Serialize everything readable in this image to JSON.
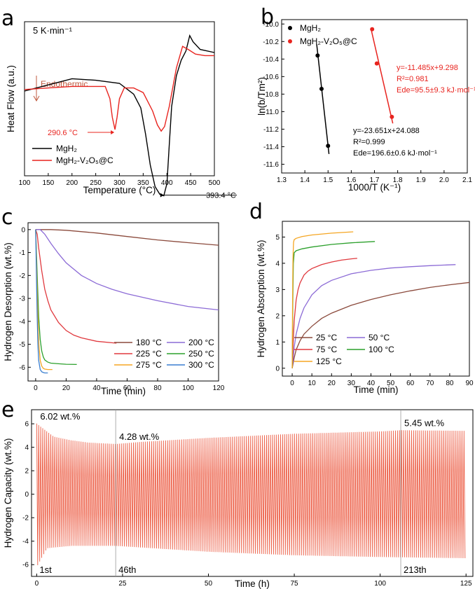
{
  "chart_data": [
    {
      "panel": "a",
      "type": "line",
      "annotation_top": "5 K·min⁻¹",
      "xlabel": "Temperature (°C)",
      "ylabel": "Heat Flow (a.u.)",
      "xlim": [
        100,
        500
      ],
      "xticks": [
        "100",
        "150",
        "200",
        "250",
        "300",
        "350",
        "400",
        "450",
        "500"
      ],
      "endothermic_label": "Endothermic",
      "peak_labels": [
        {
          "text": "290.6 °C",
          "series": "MgH₂-V₂O₅@C",
          "x": 290.6
        },
        {
          "text": "393.4 °C",
          "series": "MgH₂",
          "x": 393.4
        }
      ],
      "series": [
        {
          "name": "MgH₂",
          "color": "#000000",
          "x": [
            100,
            150,
            200,
            250,
            300,
            330,
            345,
            355,
            365,
            375,
            385,
            393.4,
            400,
            405,
            410,
            420,
            430,
            440,
            448,
            455,
            470,
            500
          ],
          "y": [
            0.45,
            0.41,
            0.37,
            0.38,
            0.4,
            0.47,
            0.56,
            0.73,
            0.93,
            1.07,
            1.12,
            1.13,
            1.05,
            0.8,
            0.55,
            0.35,
            0.25,
            0.19,
            0.09,
            0.13,
            0.18,
            0.2
          ]
        },
        {
          "name": "MgH₂-V₂O₅@C",
          "color": "#e8241f",
          "x": [
            100,
            150,
            200,
            250,
            270,
            280,
            285,
            290.6,
            295,
            300,
            310,
            330,
            350,
            370,
            380,
            388,
            395,
            405,
            420,
            433,
            445,
            460,
            480,
            500
          ],
          "y": [
            0.44,
            0.43,
            0.42,
            0.42,
            0.42,
            0.5,
            0.62,
            0.7,
            0.62,
            0.5,
            0.43,
            0.43,
            0.46,
            0.58,
            0.67,
            0.71,
            0.68,
            0.55,
            0.3,
            0.16,
            0.18,
            0.21,
            0.22,
            0.22
          ]
        }
      ]
    },
    {
      "panel": "b",
      "type": "scatter",
      "xlabel": "1000/T (K⁻¹)",
      "ylabel": "ln(b/Tm²)",
      "xlim": [
        1.3,
        2.1
      ],
      "ylim": [
        -11.7,
        -9.95
      ],
      "xticks": [
        "1.3",
        "1.4",
        "1.5",
        "1.6",
        "1.7",
        "1.8",
        "1.9",
        "2.0",
        "2.1"
      ],
      "yticks": [
        "-10.0",
        "-10.2",
        "-10.4",
        "-10.6",
        "-10.8",
        "-11.0",
        "-11.2",
        "-11.4",
        "-11.6"
      ],
      "series": [
        {
          "name": "MgH₂",
          "color": "#000000",
          "x": [
            1.455,
            1.472,
            1.5
          ],
          "y": [
            -10.36,
            -10.74,
            -11.39
          ],
          "fit": {
            "slope": -23.651,
            "intercept": 24.088
          },
          "fit_text": [
            "y=-23.651x+24.088",
            "R²=0.999",
            "Ede=196.6±0.6 kJ·mol⁻¹"
          ]
        },
        {
          "name": "MgH₂-V₂O₅@C",
          "color": "#e8241f",
          "x": [
            1.69,
            1.71,
            1.775
          ],
          "y": [
            -10.06,
            -10.45,
            -11.06
          ],
          "fit": {
            "slope": -11.485,
            "intercept": 9.298
          },
          "fit_text": [
            "y=-11.485x+9.298",
            "R²=0.981",
            "Ede=95.5±9.3 kJ·mol⁻¹"
          ]
        }
      ]
    },
    {
      "panel": "c",
      "type": "line",
      "xlabel": "Time (min)",
      "ylabel": "Hydrogen Desorption (wt.%)",
      "xlim": [
        -5,
        120
      ],
      "ylim": [
        -6.6,
        0.3
      ],
      "xticks": [
        "0",
        "20",
        "40",
        "60",
        "80",
        "100",
        "120"
      ],
      "yticks": [
        "0",
        "-1",
        "-2",
        "-3",
        "-4",
        "-5",
        "-6"
      ],
      "series": [
        {
          "name": "180 °C",
          "color": "#8b4a3c",
          "x": [
            0,
            10,
            20,
            40,
            60,
            80,
            100,
            120
          ],
          "y": [
            0,
            0,
            -0.03,
            -0.15,
            -0.3,
            -0.45,
            -0.57,
            -0.68
          ]
        },
        {
          "name": "200 °C",
          "color": "#8c6bd6",
          "x": [
            0,
            3,
            6,
            10,
            15,
            20,
            30,
            40,
            50,
            60,
            80,
            100,
            120
          ],
          "y": [
            0,
            0,
            -0.2,
            -0.6,
            -1.05,
            -1.45,
            -2.0,
            -2.35,
            -2.6,
            -2.8,
            -3.1,
            -3.35,
            -3.5
          ]
        },
        {
          "name": "225 °C",
          "color": "#e0393e",
          "x": [
            0,
            1,
            2,
            4,
            6,
            8,
            10,
            15,
            20,
            25,
            30,
            40,
            53
          ],
          "y": [
            0,
            -0.2,
            -0.8,
            -1.8,
            -2.6,
            -3.1,
            -3.5,
            -4.05,
            -4.4,
            -4.6,
            -4.72,
            -4.87,
            -4.95
          ]
        },
        {
          "name": "250 °C",
          "color": "#2ca02c",
          "x": [
            0,
            1,
            2,
            3,
            4,
            5,
            6,
            8,
            10,
            15,
            20,
            27
          ],
          "y": [
            0,
            -2.0,
            -3.8,
            -4.8,
            -5.3,
            -5.55,
            -5.68,
            -5.78,
            -5.82,
            -5.85,
            -5.87,
            -5.88
          ]
        },
        {
          "name": "275 °C",
          "color": "#f5a623",
          "x": [
            0,
            1,
            2,
            3,
            4,
            5,
            6,
            8,
            11
          ],
          "y": [
            0,
            -2.8,
            -4.9,
            -5.7,
            -5.95,
            -6.05,
            -6.08,
            -6.1,
            -6.1
          ]
        },
        {
          "name": "300 °C",
          "color": "#3a7fd0",
          "x": [
            0,
            0.5,
            1,
            1.5,
            2,
            3,
            4,
            5,
            6,
            8
          ],
          "y": [
            0,
            -2.0,
            -3.8,
            -5.0,
            -5.7,
            -6.1,
            -6.2,
            -6.23,
            -6.25,
            -6.25
          ]
        }
      ]
    },
    {
      "panel": "d",
      "type": "line",
      "xlabel": "Time (min)",
      "ylabel": "Hydrogen Absorption (wt.%)",
      "xlim": [
        -5,
        90
      ],
      "ylim": [
        -0.3,
        5.6
      ],
      "xticks": [
        "0",
        "10",
        "20",
        "30",
        "40",
        "50",
        "60",
        "70",
        "80",
        "90"
      ],
      "yticks": [
        "0",
        "1",
        "2",
        "3",
        "4",
        "5"
      ],
      "series": [
        {
          "name": "25 °C",
          "color": "#8b4a3c",
          "x": [
            0,
            1,
            2,
            4,
            6,
            10,
            15,
            20,
            30,
            40,
            50,
            60,
            70,
            80,
            90
          ],
          "y": [
            0,
            0.4,
            0.7,
            1.05,
            1.3,
            1.6,
            1.9,
            2.1,
            2.4,
            2.62,
            2.8,
            2.95,
            3.08,
            3.18,
            3.27
          ]
        },
        {
          "name": "50 °C",
          "color": "#8c6bd6",
          "x": [
            0,
            1,
            2,
            4,
            6,
            10,
            15,
            20,
            30,
            40,
            50,
            60,
            70,
            83
          ],
          "y": [
            0,
            0.8,
            1.3,
            1.9,
            2.3,
            2.8,
            3.15,
            3.35,
            3.6,
            3.73,
            3.82,
            3.87,
            3.91,
            3.95
          ]
        },
        {
          "name": "75 °C",
          "color": "#e0393e",
          "x": [
            0,
            0.5,
            1,
            2,
            3,
            4,
            6,
            8,
            10,
            15,
            20,
            25,
            30,
            33
          ],
          "y": [
            0,
            1.0,
            1.8,
            2.6,
            3.0,
            3.25,
            3.55,
            3.7,
            3.8,
            3.95,
            4.05,
            4.12,
            4.17,
            4.19
          ]
        },
        {
          "name": "100 °C",
          "color": "#2ca02c",
          "x": [
            0,
            0.3,
            0.6,
            1,
            2,
            5,
            10,
            20,
            30,
            42
          ],
          "y": [
            0,
            2.5,
            4.0,
            4.4,
            4.48,
            4.55,
            4.62,
            4.72,
            4.78,
            4.83
          ]
        },
        {
          "name": "125 °C",
          "color": "#f5a623",
          "x": [
            0,
            0.2,
            0.4,
            0.7,
            1,
            2,
            5,
            10,
            20,
            31
          ],
          "y": [
            0,
            2.5,
            4.2,
            4.8,
            4.9,
            4.95,
            5.02,
            5.08,
            5.15,
            5.2
          ]
        }
      ]
    },
    {
      "panel": "e",
      "type": "line",
      "xlabel": "Time (h)",
      "ylabel": "Hydrogen Capacity (wt.%)",
      "xlim": [
        -1.5,
        127
      ],
      "ylim": [
        -7,
        7.2
      ],
      "xticks": [
        "0",
        "25",
        "50",
        "75",
        "100",
        "125"
      ],
      "yticks": [
        "6",
        "4",
        "2",
        "0",
        "-2",
        "-4",
        "-6"
      ],
      "cycles": 213,
      "series": [
        {
          "name": "upper envelope",
          "color": "#ec5d45",
          "x": [
            0,
            5,
            10,
            15,
            23,
            30,
            50,
            75,
            100,
            106,
            125
          ],
          "y": [
            6.02,
            4.9,
            4.6,
            4.4,
            4.28,
            4.45,
            4.8,
            5.15,
            5.35,
            5.45,
            5.4
          ]
        },
        {
          "name": "lower envelope",
          "color": "#ec5d45",
          "x": [
            0,
            3,
            10,
            23,
            50,
            75,
            100,
            125
          ],
          "y": [
            -6.2,
            -4.6,
            -4.4,
            -4.4,
            -4.9,
            -5.2,
            -5.35,
            -5.45
          ]
        }
      ],
      "annotations": [
        {
          "text": "6.02 wt.%",
          "x": 0,
          "y": 6.02
        },
        {
          "text": "4.28 wt.%",
          "x": 23,
          "y": 4.28
        },
        {
          "text": "5.45 wt.%",
          "x": 106,
          "y": 5.45
        }
      ],
      "cycle_labels": [
        {
          "text": "1st",
          "x": 0
        },
        {
          "text": "46th",
          "x": 23
        },
        {
          "text": "213th",
          "x": 106
        }
      ]
    }
  ]
}
